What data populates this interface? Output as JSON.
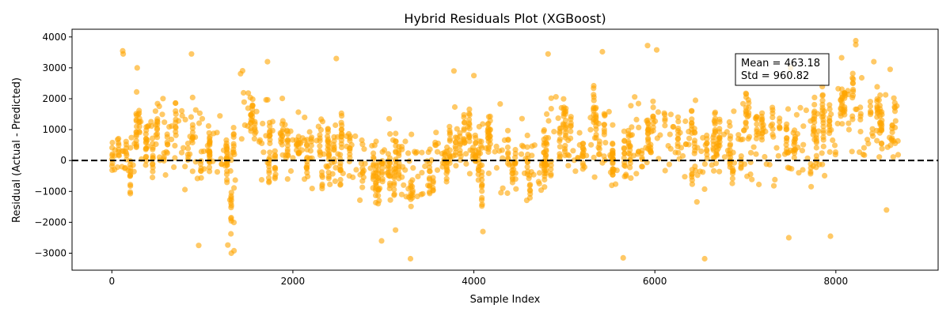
{
  "chart_data": {
    "type": "scatter",
    "title": "Hybrid Residuals Plot (XGBoost)",
    "xlabel": "Sample Index",
    "ylabel": "Residual (Actual - Predicted)",
    "xlim": [
      -440,
      9130
    ],
    "ylim": [
      -3550,
      4250
    ],
    "xticks": [
      0,
      2000,
      4000,
      6000,
      8000
    ],
    "xtick_labels": [
      "0",
      "2000",
      "4000",
      "6000",
      "8000"
    ],
    "yticks": [
      -3000,
      -2000,
      -1000,
      0,
      1000,
      2000,
      3000,
      4000
    ],
    "ytick_labels": [
      "−3000",
      "−2000",
      "−1000",
      "0",
      "1000",
      "2000",
      "3000",
      "4000"
    ],
    "grid": false,
    "reference_line": {
      "y": 0,
      "style": "dashed",
      "color": "#000000"
    },
    "annotation": {
      "lines": [
        "Mean = 463.18",
        "Std = 960.82"
      ],
      "placement": "upper-right"
    },
    "series": [
      {
        "marker_color": "#FFA500",
        "marker_alpha": 0.6,
        "n_points": 8700,
        "mean": 463.18,
        "std": 960.82,
        "samples": [
          [
            120,
            3550
          ],
          [
            125,
            3450
          ],
          [
            280,
            3000
          ],
          [
            880,
            3450
          ],
          [
            2480,
            3300
          ],
          [
            1720,
            3200
          ],
          [
            4820,
            3450
          ],
          [
            5420,
            3520
          ],
          [
            5920,
            3720
          ],
          [
            6020,
            3580
          ],
          [
            8220,
            3880
          ],
          [
            8220,
            3750
          ],
          [
            8420,
            3200
          ],
          [
            7500,
            3000
          ],
          [
            8600,
            2950
          ],
          [
            3780,
            2900
          ],
          [
            4000,
            2750
          ],
          [
            1320,
            -3000
          ],
          [
            1350,
            -2920
          ],
          [
            3300,
            -3180
          ],
          [
            5650,
            -3150
          ],
          [
            6550,
            -3180
          ],
          [
            4100,
            -2300
          ],
          [
            7480,
            -2500
          ],
          [
            8560,
            -1600
          ],
          [
            7940,
            -2450
          ],
          [
            2980,
            -2600
          ],
          [
            960,
            -2750
          ]
        ],
        "segments": [
          [
            0,
            170,
            100,
            500,
            0,
            -400,
            800
          ],
          [
            170,
            320,
            800,
            700,
            -1500,
            -1200,
            3100
          ],
          [
            320,
            500,
            700,
            600,
            -1000,
            -2100,
            2500
          ],
          [
            500,
            700,
            400,
            700,
            -2400,
            -2400,
            2200
          ],
          [
            700,
            900,
            1000,
            800,
            -500,
            -1600,
            3400
          ],
          [
            900,
            1100,
            600,
            700,
            -2800,
            -2800,
            2300
          ],
          [
            1100,
            1280,
            500,
            500,
            -1000,
            -1100,
            2200
          ],
          [
            1280,
            1420,
            -300,
            700,
            -2900,
            -3000,
            1500
          ],
          [
            1420,
            1620,
            1300,
            750,
            -800,
            -600,
            3000
          ],
          [
            1620,
            1820,
            800,
            700,
            -1800,
            -1600,
            3200
          ],
          [
            1820,
            2100,
            400,
            500,
            -1000,
            -2200,
            2300
          ],
          [
            2100,
            2450,
            300,
            500,
            -1500,
            -2200,
            2700
          ],
          [
            2450,
            2700,
            200,
            550,
            -1400,
            -1800,
            3300
          ],
          [
            2700,
            2950,
            -200,
            700,
            -2000,
            -2300,
            1700
          ],
          [
            2950,
            3300,
            -300,
            650,
            -2700,
            -2900,
            1800
          ],
          [
            3300,
            3550,
            -400,
            650,
            -3200,
            -3200,
            2400
          ],
          [
            3550,
            3800,
            300,
            600,
            -1900,
            -2200,
            2100
          ],
          [
            3800,
            4050,
            400,
            600,
            -1300,
            -2300,
            2800
          ],
          [
            4050,
            4350,
            300,
            600,
            -2000,
            -2300,
            2700
          ],
          [
            4350,
            4650,
            -300,
            650,
            -2000,
            -2100,
            1400
          ],
          [
            4650,
            4800,
            0,
            600,
            -1500,
            -1500,
            1500
          ],
          [
            4800,
            5000,
            900,
            650,
            -1000,
            -1300,
            3450
          ],
          [
            5000,
            5250,
            500,
            500,
            -1000,
            -1200,
            1900
          ],
          [
            5250,
            5500,
            800,
            700,
            -2400,
            -2400,
            3500
          ],
          [
            5500,
            5700,
            -200,
            700,
            -3100,
            -3100,
            2600
          ],
          [
            5700,
            5900,
            500,
            700,
            -1500,
            -1500,
            3300
          ],
          [
            5900,
            6200,
            700,
            700,
            -2400,
            -2400,
            3700
          ],
          [
            6200,
            6450,
            400,
            650,
            -1900,
            -2300,
            2400
          ],
          [
            6450,
            6700,
            200,
            650,
            -2300,
            -3200,
            2500
          ],
          [
            6700,
            7000,
            500,
            650,
            -1800,
            -2100,
            2700
          ],
          [
            7000,
            7300,
            600,
            650,
            -1700,
            -2500,
            2200
          ],
          [
            7300,
            7550,
            500,
            650,
            -2500,
            -2500,
            3000
          ],
          [
            7550,
            7800,
            600,
            650,
            -1500,
            -1500,
            2600
          ],
          [
            7800,
            8000,
            700,
            600,
            -2500,
            -2500,
            2700
          ],
          [
            8000,
            8300,
            1500,
            700,
            -300,
            -400,
            3900
          ],
          [
            8300,
            8500,
            1000,
            650,
            -200,
            -600,
            3100
          ],
          [
            8500,
            8700,
            900,
            650,
            -1600,
            -1700,
            3000
          ]
        ]
      }
    ]
  }
}
